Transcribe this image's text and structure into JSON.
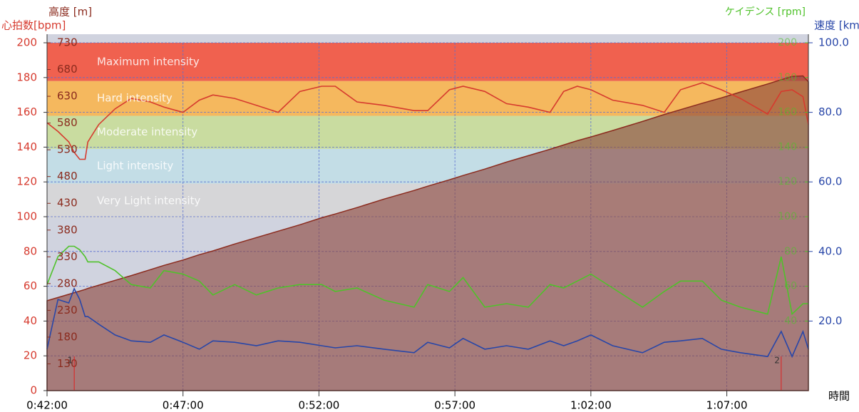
{
  "chart_data": {
    "type": "line",
    "x_label": "時間",
    "x": [
      42.0,
      42.4,
      42.8,
      43.0,
      43.2,
      43.4,
      43.5,
      43.9,
      44.5,
      45.1,
      45.8,
      46.3,
      47.0,
      47.6,
      48.1,
      48.9,
      49.7,
      50.5,
      51.3,
      52.1,
      52.6,
      53.4,
      54.4,
      55.5,
      56.0,
      56.8,
      57.3,
      58.1,
      58.9,
      59.7,
      60.5,
      61.0,
      61.5,
      62.0,
      62.8,
      63.9,
      64.7,
      65.3,
      66.1,
      66.8,
      67.5,
      68.5,
      69.0,
      69.4,
      69.8,
      70.0
    ],
    "xlim": [
      42,
      70
    ],
    "xticks": [
      {
        "value": 42,
        "label": "0:42:00"
      },
      {
        "value": 47,
        "label": "0:47:00"
      },
      {
        "value": 52,
        "label": "0:52:00"
      },
      {
        "value": 57,
        "label": "0:57:00"
      },
      {
        "value": 62,
        "label": "1:02:00"
      },
      {
        "value": 67,
        "label": "1:07:00"
      }
    ],
    "ylim": [
      0,
      200
    ],
    "yticks": [
      0,
      20,
      40,
      60,
      80,
      100,
      120,
      140,
      160,
      180,
      200
    ],
    "y2lim": [
      80,
      730
    ],
    "y2ticks": [
      130,
      180,
      230,
      280,
      330,
      380,
      430,
      480,
      530,
      580,
      630,
      680,
      730
    ],
    "y3lim": [
      0,
      200
    ],
    "y3ticks": [
      40,
      60,
      80,
      100,
      120,
      140,
      160,
      180,
      200
    ],
    "y4lim": [
      0,
      100
    ],
    "y4ticks": [
      {
        "value": 20,
        "label": "20.0"
      },
      {
        "value": 40,
        "label": "40.0"
      },
      {
        "value": 60,
        "label": "60.0"
      },
      {
        "value": 80,
        "label": "80.0"
      },
      {
        "value": 100,
        "label": "100.0"
      }
    ],
    "grid": true,
    "zones": [
      {
        "label": "Maximum intensity",
        "from": 178,
        "to": 200,
        "color": "#f0614f"
      },
      {
        "label": "Hard intensity",
        "from": 158,
        "to": 178,
        "color": "#f5b85e"
      },
      {
        "label": "Moderate intensity",
        "from": 139,
        "to": 158,
        "color": "#c9dca0"
      },
      {
        "label": "Light intensity",
        "from": 119,
        "to": 139,
        "color": "#c3dde6"
      },
      {
        "label": "Very Light intensity",
        "from": 99,
        "to": 119,
        "color": "#d6d6d8"
      }
    ],
    "laps": [
      {
        "label": "1",
        "x": 43.0
      },
      {
        "label": "2",
        "x": 69.0
      }
    ],
    "series": [
      {
        "name": "高度 [m]",
        "axis": "y2",
        "color": "#8b2b1e",
        "area": true,
        "values": [
          248,
          254,
          260,
          263,
          266,
          269,
          271,
          277,
          286,
          295,
          306,
          314,
          324,
          334,
          341,
          354,
          366,
          378,
          390,
          403,
          410,
          422,
          438,
          454,
          462,
          474,
          482,
          494,
          507,
          519,
          531,
          539,
          547,
          554,
          566,
          583,
          596,
          605,
          617,
          627,
          638,
          653,
          661,
          667,
          668,
          657
        ]
      },
      {
        "name": "心拍数[bpm]",
        "axis": "y",
        "color": "#d63a2e",
        "values": [
          154,
          149,
          143,
          137,
          133,
          133,
          143,
          153,
          162,
          168,
          166,
          163,
          160,
          167,
          170,
          168,
          164,
          160,
          172,
          175,
          175,
          166,
          164,
          161,
          161,
          173,
          175,
          172,
          165,
          163,
          160,
          172,
          175,
          173,
          167,
          164,
          160,
          173,
          177,
          173,
          168,
          159,
          172,
          173,
          169,
          153
        ]
      },
      {
        "name": "ケイデンス [rpm]",
        "axis": "y3",
        "color": "#4fc22a",
        "values": [
          61,
          77,
          83,
          83,
          81,
          77,
          74,
          74,
          69,
          61,
          59,
          69,
          67,
          63,
          55,
          61,
          55,
          59,
          61,
          61,
          57,
          59,
          52,
          48,
          61,
          57,
          65,
          48,
          50,
          48,
          61,
          59,
          63,
          67,
          59,
          48,
          57,
          63,
          63,
          52,
          48,
          44,
          77,
          44,
          50,
          50
        ]
      },
      {
        "name": "速度 [km/h]",
        "axis": "y4",
        "color": "#2846a8",
        "values": [
          11.9,
          26.2,
          25.2,
          29.3,
          26.2,
          21.3,
          21.3,
          19.1,
          16.0,
          14.3,
          13.9,
          16.0,
          13.9,
          11.9,
          14.3,
          13.9,
          12.9,
          14.3,
          13.9,
          12.9,
          12.3,
          12.9,
          11.9,
          10.9,
          13.9,
          12.3,
          15.0,
          11.9,
          12.9,
          11.9,
          14.3,
          12.9,
          14.3,
          16.0,
          12.9,
          10.9,
          13.9,
          14.3,
          15.0,
          11.9,
          10.9,
          9.8,
          17.0,
          9.8,
          17.0,
          11.9
        ]
      }
    ]
  }
}
